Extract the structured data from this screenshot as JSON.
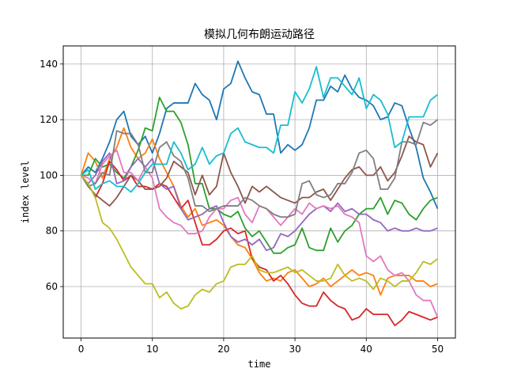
{
  "chart_data": {
    "type": "line",
    "title": "模拟几何布朗运动路径",
    "xlabel": "time",
    "ylabel": "index level",
    "xlim": [
      -2.5,
      52.5
    ],
    "ylim": [
      41.5,
      146.5
    ],
    "xticks": [
      0,
      10,
      20,
      30,
      40,
      50
    ],
    "yticks": [
      60,
      80,
      100,
      120,
      140
    ],
    "grid": true,
    "x": [
      0,
      1,
      2,
      3,
      4,
      5,
      6,
      7,
      8,
      9,
      10,
      11,
      12,
      13,
      14,
      15,
      16,
      17,
      18,
      19,
      20,
      21,
      22,
      23,
      24,
      25,
      26,
      27,
      28,
      29,
      30,
      31,
      32,
      33,
      34,
      35,
      36,
      37,
      38,
      39,
      40,
      41,
      42,
      43,
      44,
      45,
      46,
      47,
      48,
      49,
      50
    ],
    "series": [
      {
        "color": "#1f77b4",
        "values": [
          100,
          103,
          101,
          106,
          112,
          120,
          123,
          114,
          111,
          114,
          108,
          115,
          124,
          126,
          126,
          126,
          133,
          129,
          127,
          120,
          131,
          133,
          141,
          135,
          130,
          129,
          122,
          122,
          108,
          111,
          109,
          111,
          117,
          127,
          127,
          132,
          130,
          136,
          131,
          128,
          127,
          125,
          120,
          121,
          126,
          125,
          117,
          110,
          99,
          94,
          88
        ]
      },
      {
        "color": "#ff7f0e",
        "values": [
          100,
          108,
          105,
          99,
          106,
          110,
          117,
          110,
          106,
          108,
          113,
          106,
          101,
          96,
          89,
          85,
          88,
          82,
          83,
          84,
          82,
          78,
          75,
          74,
          70,
          65,
          62,
          63,
          62,
          65,
          66,
          63,
          60,
          61,
          63,
          60,
          62,
          64,
          66,
          64,
          65,
          64,
          57,
          63,
          64,
          64,
          64,
          62,
          62,
          60,
          61
        ]
      },
      {
        "color": "#2ca02c",
        "values": [
          100,
          100,
          106,
          103,
          104,
          101,
          99,
          103,
          109,
          117,
          116,
          128,
          123,
          123,
          119,
          111,
          97,
          97,
          88,
          88,
          86,
          85,
          87,
          81,
          78,
          80,
          76,
          72,
          72,
          74,
          75,
          81,
          74,
          73,
          73,
          81,
          76,
          80,
          82,
          86,
          88,
          88,
          92,
          86,
          91,
          90,
          86,
          84,
          88,
          91,
          92
        ]
      },
      {
        "color": "#d62728",
        "values": [
          100,
          97,
          92,
          97,
          105,
          102,
          98,
          100,
          96,
          96,
          95,
          97,
          96,
          92,
          88,
          91,
          83,
          75,
          75,
          77,
          80,
          81,
          79,
          80,
          70,
          67,
          66,
          62,
          64,
          61,
          57,
          54,
          53,
          53,
          58,
          55,
          53,
          52,
          48,
          49,
          52,
          50,
          50,
          50,
          46,
          48,
          51,
          50,
          49,
          48,
          49
        ]
      },
      {
        "color": "#9467bd",
        "values": [
          100,
          97,
          100,
          105,
          108,
          97,
          98,
          103,
          106,
          103,
          106,
          97,
          95,
          96,
          88,
          84,
          85,
          86,
          88,
          89,
          83,
          78,
          76,
          77,
          75,
          77,
          73,
          74,
          79,
          78,
          80,
          83,
          86,
          88,
          89,
          87,
          90,
          87,
          88,
          86,
          86,
          84,
          83,
          80,
          81,
          80,
          80,
          81,
          80,
          80,
          81
        ]
      },
      {
        "color": "#8c564b",
        "values": [
          100,
          96,
          93,
          91,
          89,
          92,
          96,
          100,
          98,
          95,
          95,
          96,
          99,
          105,
          103,
          101,
          93,
          100,
          93,
          96,
          108,
          101,
          96,
          90,
          96,
          94,
          96,
          94,
          92,
          91,
          90,
          92,
          92,
          94,
          95,
          91,
          95,
          99,
          102,
          103,
          100,
          100,
          103,
          98,
          101,
          107,
          114,
          112,
          111,
          103,
          108
        ]
      },
      {
        "color": "#e377c2",
        "values": [
          100,
          99,
          97,
          104,
          107,
          109,
          101,
          101,
          98,
          103,
          99,
          88,
          85,
          83,
          82,
          79,
          79,
          80,
          85,
          88,
          88,
          91,
          92,
          86,
          83,
          89,
          88,
          85,
          82,
          85,
          88,
          86,
          90,
          88,
          89,
          88,
          89,
          86,
          85,
          83,
          71,
          69,
          71,
          66,
          64,
          65,
          62,
          57,
          55,
          55,
          49
        ]
      },
      {
        "color": "#7f7f7f",
        "values": [
          100,
          96,
          97,
          101,
          100,
          116,
          115,
          115,
          111,
          101,
          101,
          110,
          112,
          107,
          105,
          99,
          89,
          89,
          87,
          88,
          89,
          89,
          89,
          92,
          91,
          89,
          88,
          86,
          85,
          85,
          86,
          97,
          98,
          93,
          92,
          93,
          97,
          97,
          101,
          108,
          109,
          106,
          95,
          95,
          99,
          112,
          112,
          111,
          119,
          118,
          120
        ]
      },
      {
        "color": "#bcbd22",
        "values": [
          100,
          97,
          92,
          83,
          81,
          77,
          72,
          67,
          64,
          61,
          61,
          56,
          58,
          54,
          52,
          53,
          57,
          59,
          58,
          61,
          62,
          67,
          68,
          68,
          71,
          66,
          65,
          65,
          66,
          67,
          65,
          66,
          64,
          62,
          62,
          63,
          68,
          64,
          62,
          63,
          62,
          59,
          63,
          62,
          60,
          62,
          62,
          65,
          69,
          68,
          70
        ]
      },
      {
        "color": "#17becf",
        "values": [
          100,
          102,
          95,
          97,
          98,
          96,
          96,
          94,
          97,
          101,
          104,
          104,
          104,
          112,
          108,
          102,
          104,
          110,
          104,
          107,
          108,
          115,
          117,
          112,
          111,
          110,
          110,
          108,
          118,
          118,
          130,
          126,
          131,
          139,
          128,
          135,
          135,
          132,
          129,
          135,
          124,
          129,
          127,
          122,
          110,
          112,
          121,
          121,
          121,
          127,
          129
        ]
      }
    ]
  }
}
